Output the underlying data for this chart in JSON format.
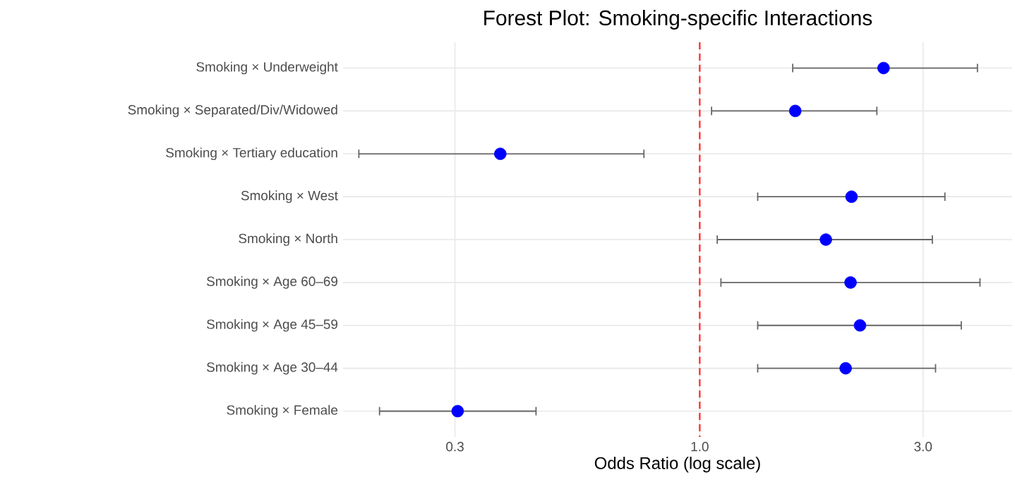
{
  "chart_data": {
    "type": "scatter",
    "orientation": "horizontal",
    "title": "Forest Plot: Smoking-specific Interactions",
    "xlabel": "Odds Ratio (log scale)",
    "categories": [
      "Smoking × Underweight",
      "Smoking × Separated/Div/Widowed",
      "Smoking × Tertiary education",
      "Smoking × West",
      "Smoking × North",
      "Smoking × Age 60–69",
      "Smoking × Age 45–59",
      "Smoking × Age 30–44",
      "Smoking × Female"
    ],
    "values": [
      2.47,
      1.6,
      0.375,
      2.11,
      1.86,
      2.1,
      2.2,
      2.05,
      0.304
    ],
    "errors": [
      [
        1.58,
        3.92
      ],
      [
        1.06,
        2.39
      ],
      [
        0.187,
        0.76
      ],
      [
        1.33,
        3.34
      ],
      [
        1.09,
        3.14
      ],
      [
        1.11,
        3.97
      ],
      [
        1.33,
        3.62
      ],
      [
        1.33,
        3.19
      ],
      [
        0.207,
        0.447
      ]
    ],
    "color": "#0000ff",
    "marker": "circle",
    "log": "x",
    "grid": true,
    "xlim": [
      0.173,
      4.65
    ],
    "xticks": [
      0.3,
      {
        "value": 1,
        "label": "1.0"
      },
      {
        "value": 3,
        "label": "3.0"
      }
    ],
    "ref_lines": [
      {
        "axis": "x",
        "value": 1,
        "color": "#ff3333",
        "line_style": "dashed"
      }
    ]
  }
}
